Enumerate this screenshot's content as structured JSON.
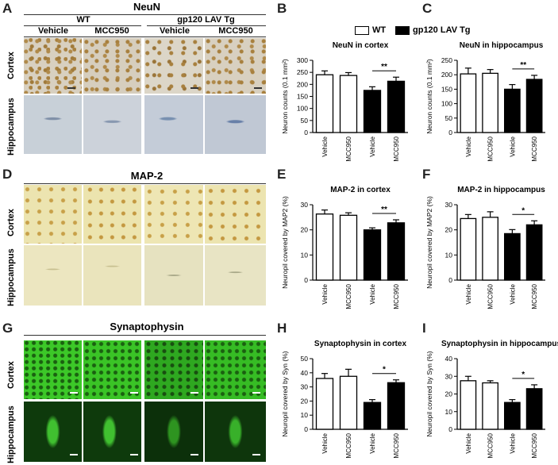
{
  "letters": {
    "A": "A",
    "B": "B",
    "C": "C",
    "D": "D",
    "E": "E",
    "F": "F",
    "G": "G",
    "H": "H",
    "I": "I"
  },
  "groups": {
    "wt": "WT",
    "tg": "gp120 LAV Tg"
  },
  "treat": {
    "vehicle": "Vehicle",
    "mcc": "MCC950"
  },
  "rows": {
    "cortex": "Cortex",
    "hippocampus": "Hippocampus"
  },
  "stains": {
    "neun": "NeuN",
    "map2": "MAP-2",
    "syn": "Synaptophysin"
  },
  "legend": {
    "wt": "WT",
    "tg": "gp120 LAV Tg",
    "wt_color": "#ffffff",
    "tg_color": "#000000"
  },
  "chart_data": [
    {
      "id": "B",
      "type": "bar",
      "title": "NeuN in cortex",
      "ylabel": "Neuron counts (0.1 mm²)",
      "categories": [
        "Vehicle",
        "MCC950",
        "Vehicle",
        "MCC950"
      ],
      "values": [
        240,
        237,
        175,
        213
      ],
      "errors": [
        16,
        12,
        15,
        17
      ],
      "fills": [
        "#ffffff",
        "#ffffff",
        "#000000",
        "#000000"
      ],
      "ylim": [
        0,
        300
      ],
      "yticks": [
        0,
        50,
        100,
        150,
        200,
        250,
        300
      ],
      "sig": "**"
    },
    {
      "id": "C",
      "type": "bar",
      "title": "NeuN in hippocampus",
      "ylabel": "Neuron counts (0.1 mm²)",
      "categories": [
        "Vehicle",
        "MCC950",
        "Vehicle",
        "MCC950"
      ],
      "values": [
        203,
        205,
        150,
        184
      ],
      "errors": [
        20,
        13,
        16,
        14
      ],
      "fills": [
        "#ffffff",
        "#ffffff",
        "#000000",
        "#000000"
      ],
      "ylim": [
        0,
        250
      ],
      "yticks": [
        0,
        50,
        100,
        150,
        200,
        250
      ],
      "sig": "**"
    },
    {
      "id": "E",
      "type": "bar",
      "title": "MAP-2 in cortex",
      "ylabel": "Neuropil covered by MAP2 (%)",
      "categories": [
        "Vehicle",
        "MCC950",
        "Vehicle",
        "MCC950"
      ],
      "values": [
        26.3,
        25.8,
        20,
        22.8
      ],
      "errors": [
        1.6,
        1.0,
        0.8,
        1.2
      ],
      "fills": [
        "#ffffff",
        "#ffffff",
        "#000000",
        "#000000"
      ],
      "ylim": [
        0,
        30
      ],
      "yticks": [
        0,
        10,
        20,
        30
      ],
      "sig": "**"
    },
    {
      "id": "F",
      "type": "bar",
      "title": "MAP-2 in hippocampus",
      "ylabel": "Neuropil covered by MAP2 (%)",
      "categories": [
        "Vehicle",
        "MCC950",
        "Vehicle",
        "MCC950"
      ],
      "values": [
        24.5,
        25,
        18.5,
        22
      ],
      "errors": [
        1.6,
        2.2,
        1.6,
        1.6
      ],
      "fills": [
        "#ffffff",
        "#ffffff",
        "#000000",
        "#000000"
      ],
      "ylim": [
        0,
        30
      ],
      "yticks": [
        0,
        10,
        20,
        30
      ],
      "sig": "*"
    },
    {
      "id": "H",
      "type": "bar",
      "title": "Synaptophysin in cortex",
      "ylabel": "Neuropil covered by Syn (%)",
      "categories": [
        "Vehicle",
        "MCC950",
        "Vehicle",
        "MCC950"
      ],
      "values": [
        36,
        37.5,
        19,
        33
      ],
      "errors": [
        3.5,
        5,
        2,
        2
      ],
      "fills": [
        "#ffffff",
        "#ffffff",
        "#000000",
        "#000000"
      ],
      "ylim": [
        0,
        50
      ],
      "yticks": [
        0,
        10,
        20,
        30,
        40,
        50
      ],
      "sig": "*"
    },
    {
      "id": "I",
      "type": "bar",
      "title": "Synaptophysin in hippocampus",
      "ylabel": "Neuropil covered by Syn (%)",
      "categories": [
        "Vehicle",
        "MCC950",
        "Vehicle",
        "MCC950"
      ],
      "values": [
        27.5,
        26.3,
        15.2,
        23
      ],
      "errors": [
        2.5,
        1.2,
        1.6,
        2.2
      ],
      "fills": [
        "#ffffff",
        "#ffffff",
        "#000000",
        "#000000"
      ],
      "ylim": [
        0,
        40
      ],
      "yticks": [
        0,
        10,
        20,
        30,
        40
      ],
      "sig": "*"
    }
  ]
}
